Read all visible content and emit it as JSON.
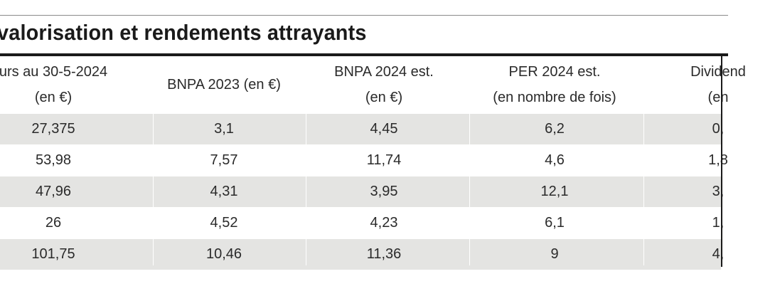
{
  "title": "valorisation et rendements attrayants",
  "headers": [
    {
      "line1": "urs au 30-5-2024",
      "line2": "(en €)"
    },
    {
      "line1": "BNPA 2023 (en €)",
      "line2": ""
    },
    {
      "line1": "BNPA 2024 est.",
      "line2": "(en €)"
    },
    {
      "line1": "PER 2024 est.",
      "line2": "(en nombre de fois)"
    },
    {
      "line1": "Dividend",
      "line2": "(en"
    }
  ],
  "rows": [
    [
      "27,375",
      "3,1",
      "4,45",
      "6,2",
      "0,"
    ],
    [
      "53,98",
      "7,57",
      "11,74",
      "4,6",
      "1,8"
    ],
    [
      "47,96",
      "4,31",
      "3,95",
      "12,1",
      "3,"
    ],
    [
      "26",
      "4,52",
      "4,23",
      "6,1",
      "1,"
    ],
    [
      "101,75",
      "10,46",
      "11,36",
      "9",
      "4,"
    ]
  ]
}
